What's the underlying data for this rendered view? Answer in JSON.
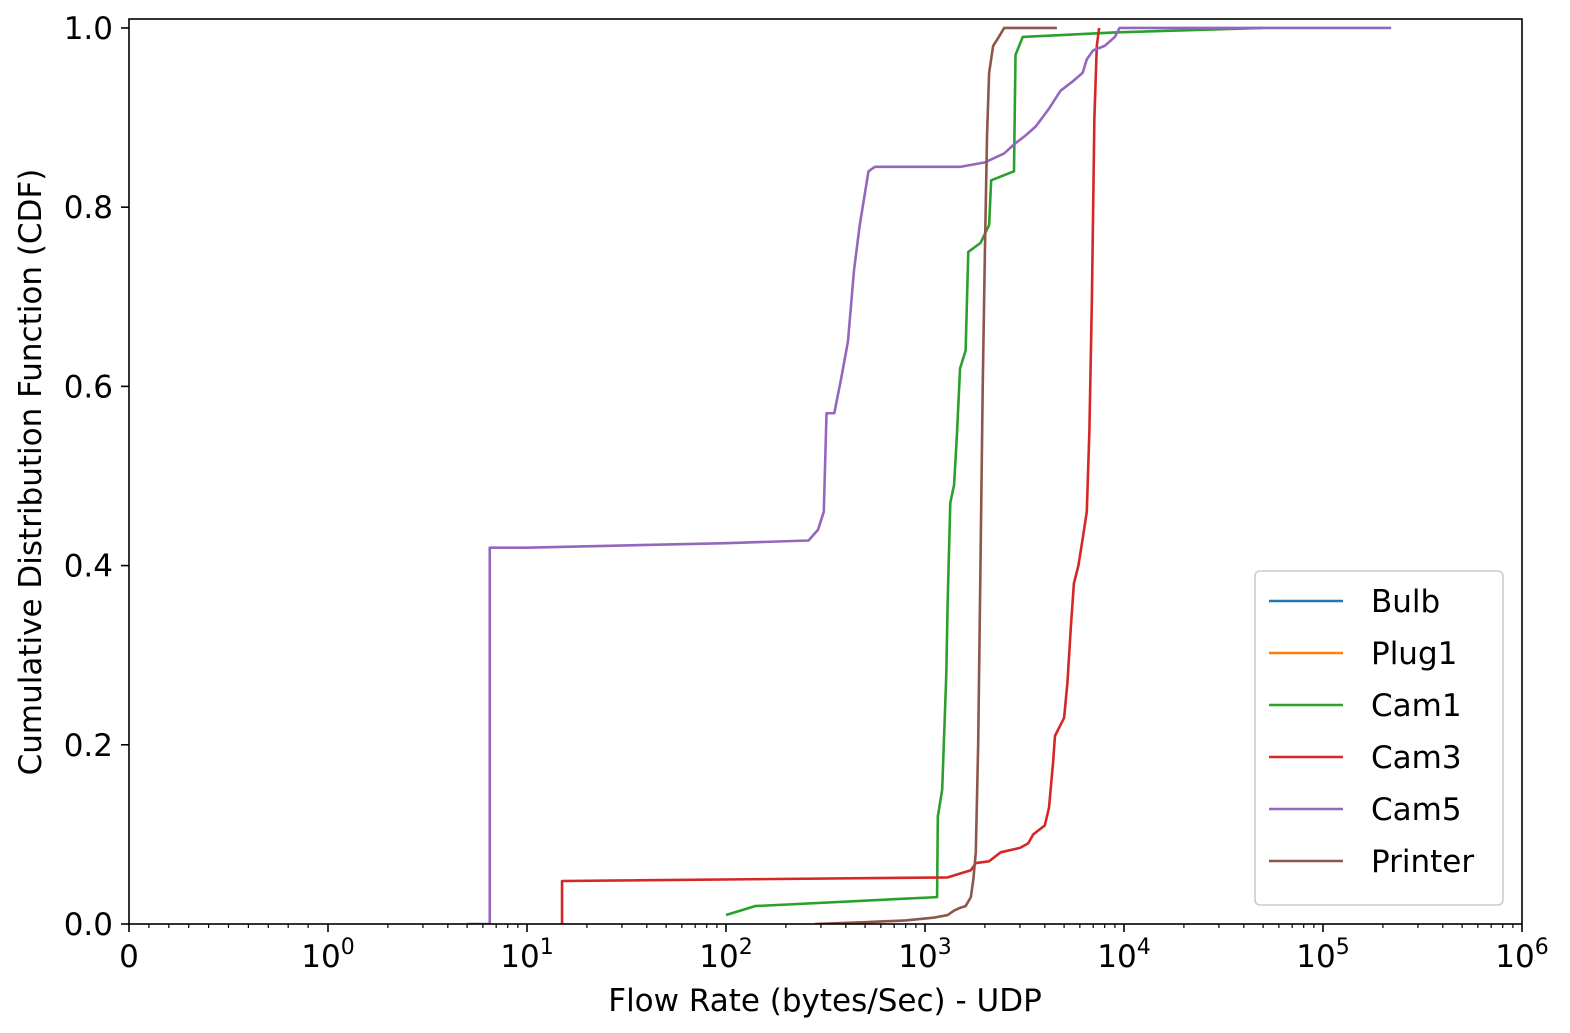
{
  "chart_data": {
    "type": "line",
    "title": "",
    "xlabel": "Flow Rate (bytes/Sec) - UDP",
    "ylabel": "Cumulative Distribution Function (CDF)",
    "xscale": "symlog",
    "xlim": [
      0,
      1000000
    ],
    "ylim": [
      0,
      1.01
    ],
    "grid": false,
    "legend_position": "lower right",
    "x_ticks": [
      {
        "value": 0,
        "base": "0",
        "exp": ""
      },
      {
        "value": 1,
        "base": "10",
        "exp": "0"
      },
      {
        "value": 10,
        "base": "10",
        "exp": "1"
      },
      {
        "value": 100,
        "base": "10",
        "exp": "2"
      },
      {
        "value": 1000,
        "base": "10",
        "exp": "3"
      },
      {
        "value": 10000,
        "base": "10",
        "exp": "4"
      },
      {
        "value": 100000,
        "base": "10",
        "exp": "5"
      },
      {
        "value": 1000000,
        "base": "10",
        "exp": "6"
      }
    ],
    "y_ticks": [
      {
        "value": 0.0,
        "label": "0.0"
      },
      {
        "value": 0.2,
        "label": "0.2"
      },
      {
        "value": 0.4,
        "label": "0.4"
      },
      {
        "value": 0.6,
        "label": "0.6"
      },
      {
        "value": 0.8,
        "label": "0.8"
      },
      {
        "value": 1.0,
        "label": "1.0"
      }
    ],
    "series": [
      {
        "name": "Bulb",
        "color": "#1f77b4",
        "points": []
      },
      {
        "name": "Plug1",
        "color": "#ff7f0e",
        "points": []
      },
      {
        "name": "Cam1",
        "color": "#2ca02c",
        "points": [
          [
            100,
            0.01
          ],
          [
            140,
            0.02
          ],
          [
            1150,
            0.03
          ],
          [
            1160,
            0.12
          ],
          [
            1220,
            0.15
          ],
          [
            1280,
            0.28
          ],
          [
            1300,
            0.36
          ],
          [
            1340,
            0.47
          ],
          [
            1400,
            0.49
          ],
          [
            1450,
            0.55
          ],
          [
            1500,
            0.62
          ],
          [
            1600,
            0.64
          ],
          [
            1650,
            0.75
          ],
          [
            1900,
            0.76
          ],
          [
            2100,
            0.78
          ],
          [
            2150,
            0.83
          ],
          [
            2800,
            0.84
          ],
          [
            2850,
            0.97
          ],
          [
            3100,
            0.99
          ],
          [
            9000,
            0.995
          ],
          [
            50000,
            1.0
          ]
        ]
      },
      {
        "name": "Cam3",
        "color": "#d62728",
        "points": [
          [
            15,
            0.0
          ],
          [
            15,
            0.048
          ],
          [
            1300,
            0.052
          ],
          [
            1700,
            0.06
          ],
          [
            1800,
            0.068
          ],
          [
            2100,
            0.07
          ],
          [
            2400,
            0.08
          ],
          [
            3000,
            0.085
          ],
          [
            3300,
            0.09
          ],
          [
            3500,
            0.1
          ],
          [
            4000,
            0.11
          ],
          [
            4200,
            0.13
          ],
          [
            4400,
            0.18
          ],
          [
            4500,
            0.21
          ],
          [
            5000,
            0.23
          ],
          [
            5200,
            0.27
          ],
          [
            5400,
            0.33
          ],
          [
            5600,
            0.38
          ],
          [
            5900,
            0.4
          ],
          [
            6200,
            0.43
          ],
          [
            6500,
            0.46
          ],
          [
            6700,
            0.55
          ],
          [
            6900,
            0.7
          ],
          [
            7100,
            0.9
          ],
          [
            7300,
            0.98
          ],
          [
            7500,
            1.0
          ]
        ]
      },
      {
        "name": "Cam5",
        "color": "#9467bd",
        "points": [
          [
            5,
            0.0
          ],
          [
            6.5,
            0.0
          ],
          [
            6.5,
            0.42
          ],
          [
            10,
            0.42
          ],
          [
            100,
            0.425
          ],
          [
            260,
            0.428
          ],
          [
            290,
            0.44
          ],
          [
            310,
            0.46
          ],
          [
            320,
            0.57
          ],
          [
            350,
            0.57
          ],
          [
            380,
            0.61
          ],
          [
            410,
            0.65
          ],
          [
            440,
            0.73
          ],
          [
            470,
            0.78
          ],
          [
            520,
            0.84
          ],
          [
            560,
            0.845
          ],
          [
            1500,
            0.845
          ],
          [
            2000,
            0.85
          ],
          [
            2500,
            0.86
          ],
          [
            2800,
            0.87
          ],
          [
            3200,
            0.88
          ],
          [
            3600,
            0.89
          ],
          [
            4200,
            0.91
          ],
          [
            4800,
            0.93
          ],
          [
            5500,
            0.94
          ],
          [
            6200,
            0.95
          ],
          [
            6500,
            0.965
          ],
          [
            7000,
            0.975
          ],
          [
            8000,
            0.98
          ],
          [
            9000,
            0.99
          ],
          [
            9500,
            1.0
          ],
          [
            220000,
            1.0
          ]
        ]
      },
      {
        "name": "Printer",
        "color": "#8c564b",
        "points": [
          [
            280,
            0.0
          ],
          [
            500,
            0.002
          ],
          [
            800,
            0.004
          ],
          [
            1100,
            0.007
          ],
          [
            1300,
            0.01
          ],
          [
            1400,
            0.015
          ],
          [
            1500,
            0.018
          ],
          [
            1600,
            0.02
          ],
          [
            1700,
            0.03
          ],
          [
            1750,
            0.05
          ],
          [
            1800,
            0.08
          ],
          [
            1850,
            0.2
          ],
          [
            1900,
            0.4
          ],
          [
            1950,
            0.6
          ],
          [
            2000,
            0.75
          ],
          [
            2050,
            0.88
          ],
          [
            2100,
            0.95
          ],
          [
            2200,
            0.98
          ],
          [
            2350,
            0.99
          ],
          [
            2500,
            1.0
          ],
          [
            4600,
            1.0
          ]
        ]
      }
    ]
  }
}
